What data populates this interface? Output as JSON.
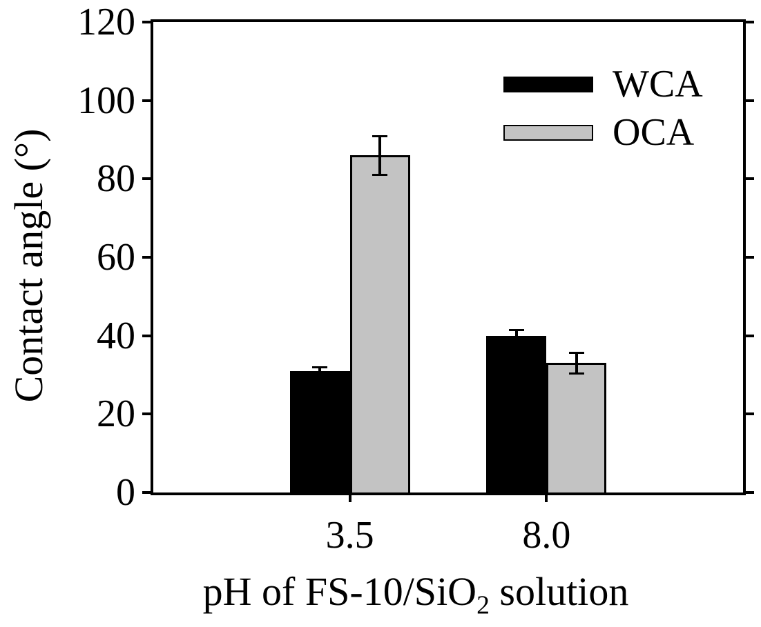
{
  "chart_data": {
    "type": "bar",
    "title": "",
    "categories": [
      "3.5",
      "8.0"
    ],
    "series": [
      {
        "name": "WCA",
        "color": "#000000",
        "values": [
          31,
          40
        ],
        "errors": [
          1,
          1.5
        ]
      },
      {
        "name": "OCA",
        "color": "#c3c3c3",
        "values": [
          86,
          33
        ],
        "errors": [
          5,
          2.7
        ]
      }
    ],
    "xlabel": "pH of FS-10/SiO2 solution",
    "xlabel_parts": {
      "prefix": "pH of FS-10/SiO",
      "sub": "2",
      "suffix": " solution"
    },
    "ylabel": "Contact angle (°)",
    "ylim": [
      0,
      120
    ],
    "yticks": [
      0,
      20,
      40,
      60,
      80,
      100,
      120
    ],
    "grid": false,
    "legend_position": "top-right",
    "axis_color": "#000000",
    "background_color": "#ffffff",
    "bar_outline_color": "#000000",
    "error_bar_color": "#000000"
  }
}
